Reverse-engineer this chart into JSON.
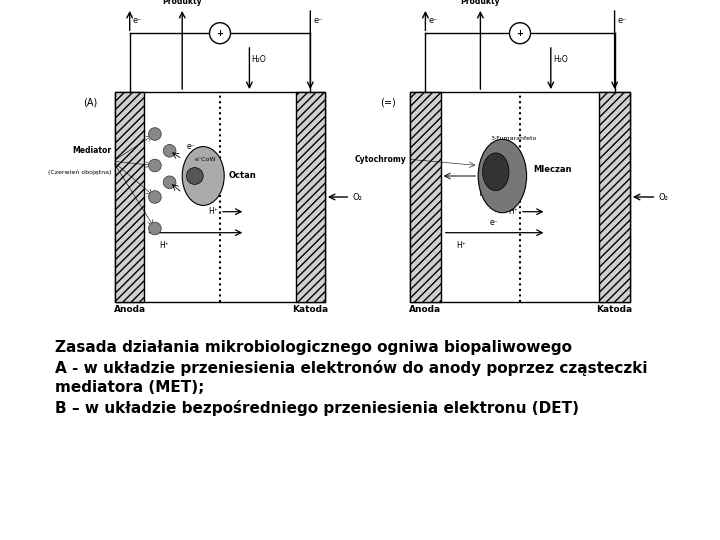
{
  "bg_color": "#ffffff",
  "text_color": "#000000",
  "caption_line1": "Zasada działania mikrobiologicznego ogniwa biopaliwowego",
  "caption_line2": "A - w układzie przeniesienia elektronów do anody poprzez cząsteczki",
  "caption_line3": "mediatora (MET);",
  "caption_line4": "B – w układzie bezpośredniego przeniesienia elektronu (DET)",
  "caption_fontsize": 11.0,
  "gray_fill": "#cccccc",
  "box_outline": "#000000"
}
